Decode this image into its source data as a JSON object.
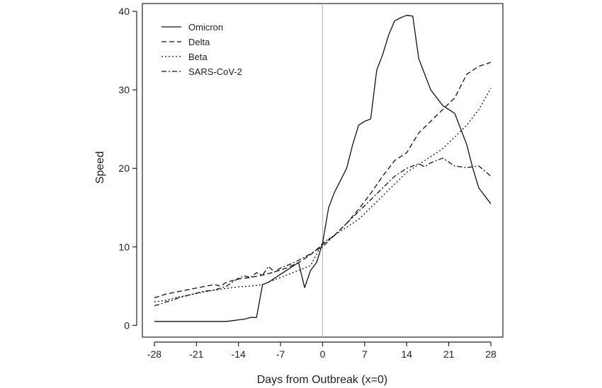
{
  "chart_data": {
    "type": "line",
    "xlabel": "Days from Outbreak (x=0)",
    "ylabel": "Speed",
    "xlim": [
      -30,
      30
    ],
    "ylim": [
      -1.5,
      41
    ],
    "xticks": [
      -28,
      -21,
      -14,
      -7,
      0,
      7,
      14,
      21,
      28
    ],
    "yticks": [
      0,
      10,
      20,
      30,
      40
    ],
    "vline_x": 0,
    "legend_position": "top-left",
    "series": [
      {
        "name": "Omicron",
        "dash": "solid",
        "x": [
          -28,
          -24,
          -20,
          -16,
          -13,
          -12,
          -11,
          -10,
          -9,
          -8,
          -7,
          -6,
          -5,
          -4,
          -3,
          -2,
          -1,
          0,
          1,
          2,
          3,
          4,
          5,
          6,
          7,
          8,
          9,
          10,
          11,
          12,
          13,
          14,
          15,
          16,
          17,
          18,
          19,
          20,
          21,
          22,
          23,
          24,
          25,
          26,
          27,
          28
        ],
        "y": [
          0.5,
          0.5,
          0.5,
          0.5,
          0.8,
          1.0,
          1.0,
          5.2,
          5.5,
          6.0,
          6.5,
          7.0,
          7.5,
          8.0,
          4.8,
          7.0,
          8.0,
          10.5,
          15.0,
          17.0,
          18.5,
          20.0,
          23.0,
          25.5,
          26.0,
          26.3,
          32.5,
          34.5,
          37.0,
          38.8,
          39.2,
          39.5,
          39.4,
          34.0,
          32.0,
          30.0,
          29.0,
          28.0,
          27.5,
          27.0,
          25.0,
          23.0,
          20.0,
          17.5,
          16.5,
          15.5
        ]
      },
      {
        "name": "Delta",
        "dash": "dashed",
        "x": [
          -28,
          -26,
          -24,
          -22,
          -20,
          -18,
          -17,
          -16,
          -14,
          -12,
          -10,
          -8,
          -6,
          -4,
          -2,
          0,
          2,
          4,
          6,
          8,
          10,
          12,
          14,
          16,
          18,
          20,
          22,
          24,
          26,
          28
        ],
        "y": [
          3.5,
          4.0,
          4.3,
          4.6,
          4.9,
          5.2,
          5.0,
          5.5,
          5.9,
          6.1,
          6.4,
          6.8,
          7.3,
          8.0,
          9.0,
          10.3,
          11.5,
          13.0,
          14.8,
          16.8,
          19.0,
          21.0,
          22.0,
          24.5,
          26.0,
          27.5,
          29.0,
          32.0,
          33.0,
          33.5
        ]
      },
      {
        "name": "Beta",
        "dash": "dotted",
        "x": [
          -28,
          -26,
          -24,
          -22,
          -20,
          -18,
          -16,
          -14,
          -12,
          -10,
          -8,
          -6,
          -4,
          -2,
          0,
          2,
          4,
          6,
          8,
          10,
          12,
          14,
          16,
          18,
          20,
          22,
          24,
          26,
          28
        ],
        "y": [
          3.0,
          3.2,
          3.6,
          3.9,
          4.2,
          4.5,
          4.7,
          4.9,
          5.0,
          5.2,
          5.8,
          6.4,
          7.0,
          7.6,
          10.5,
          11.5,
          12.5,
          13.5,
          15.0,
          16.5,
          18.0,
          19.5,
          20.5,
          21.5,
          22.5,
          24.0,
          25.5,
          27.5,
          30.2
        ]
      },
      {
        "name": "SARS-CoV-2",
        "dash": "dashdot",
        "x": [
          -28,
          -27,
          -26,
          -25,
          -24,
          -22,
          -20,
          -18,
          -16,
          -14,
          -13,
          -12,
          -11,
          -10,
          -9,
          -8,
          -7,
          -6,
          -5,
          -4,
          -3,
          -2,
          -1,
          0,
          2,
          4,
          6,
          8,
          10,
          12,
          14,
          16,
          17,
          18,
          19,
          20,
          22,
          24,
          26,
          28
        ],
        "y": [
          2.5,
          2.7,
          3.0,
          3.2,
          3.5,
          3.9,
          4.3,
          4.5,
          5.0,
          6.0,
          6.3,
          6.1,
          6.7,
          6.4,
          7.5,
          6.8,
          7.3,
          7.6,
          7.9,
          8.3,
          8.7,
          9.1,
          9.6,
          10.0,
          11.5,
          13.0,
          14.5,
          16.0,
          17.5,
          19.0,
          20.0,
          20.6,
          20.2,
          20.7,
          21.0,
          21.3,
          20.3,
          20.1,
          20.3,
          19.0
        ]
      }
    ]
  }
}
